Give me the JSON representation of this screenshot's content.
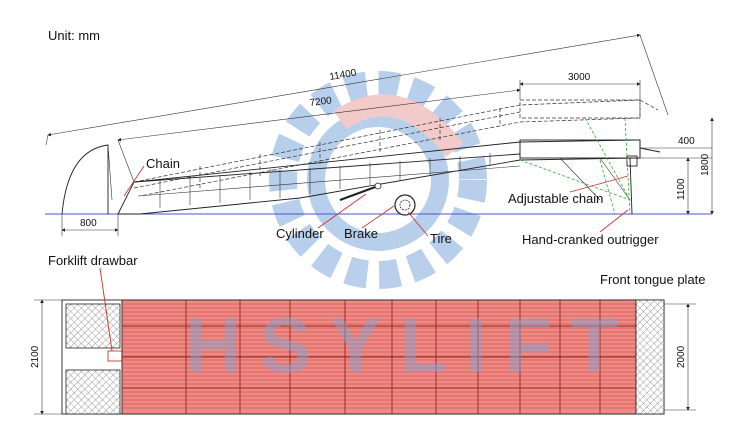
{
  "unit_label": "Unit: mm",
  "watermark": "HSYLIFT",
  "side_view": {
    "dimensions": {
      "overall_length": "11400",
      "ramp_length": "7200",
      "platform_length": "3000",
      "toe_length": "800",
      "lip_height_offset": "400",
      "platform_height": "1100",
      "max_height": "1800"
    },
    "labels": {
      "chain": "Chain",
      "adjustable_chain": "Adjustable chain",
      "cylinder": "Cylinder",
      "brake": "Brake",
      "tire": "Tire",
      "outrigger": "Hand-cranked outrigger"
    }
  },
  "top_view": {
    "labels": {
      "forklift_drawbar": "Forklift drawbar",
      "front_tongue_plate": "Front tongue plate"
    },
    "dimensions": {
      "rear_width": "2100",
      "front_width": "2000"
    }
  },
  "colors": {
    "grating_fill": "#f08a86",
    "grating_line": "#c43b2e",
    "watermark_blue": "#7fa8dc",
    "watermark_red": "#e8a0a0",
    "ground_line": "#4a57c8",
    "leader_red": "#c23a2a",
    "outrigger_green": "#2fae2f"
  }
}
